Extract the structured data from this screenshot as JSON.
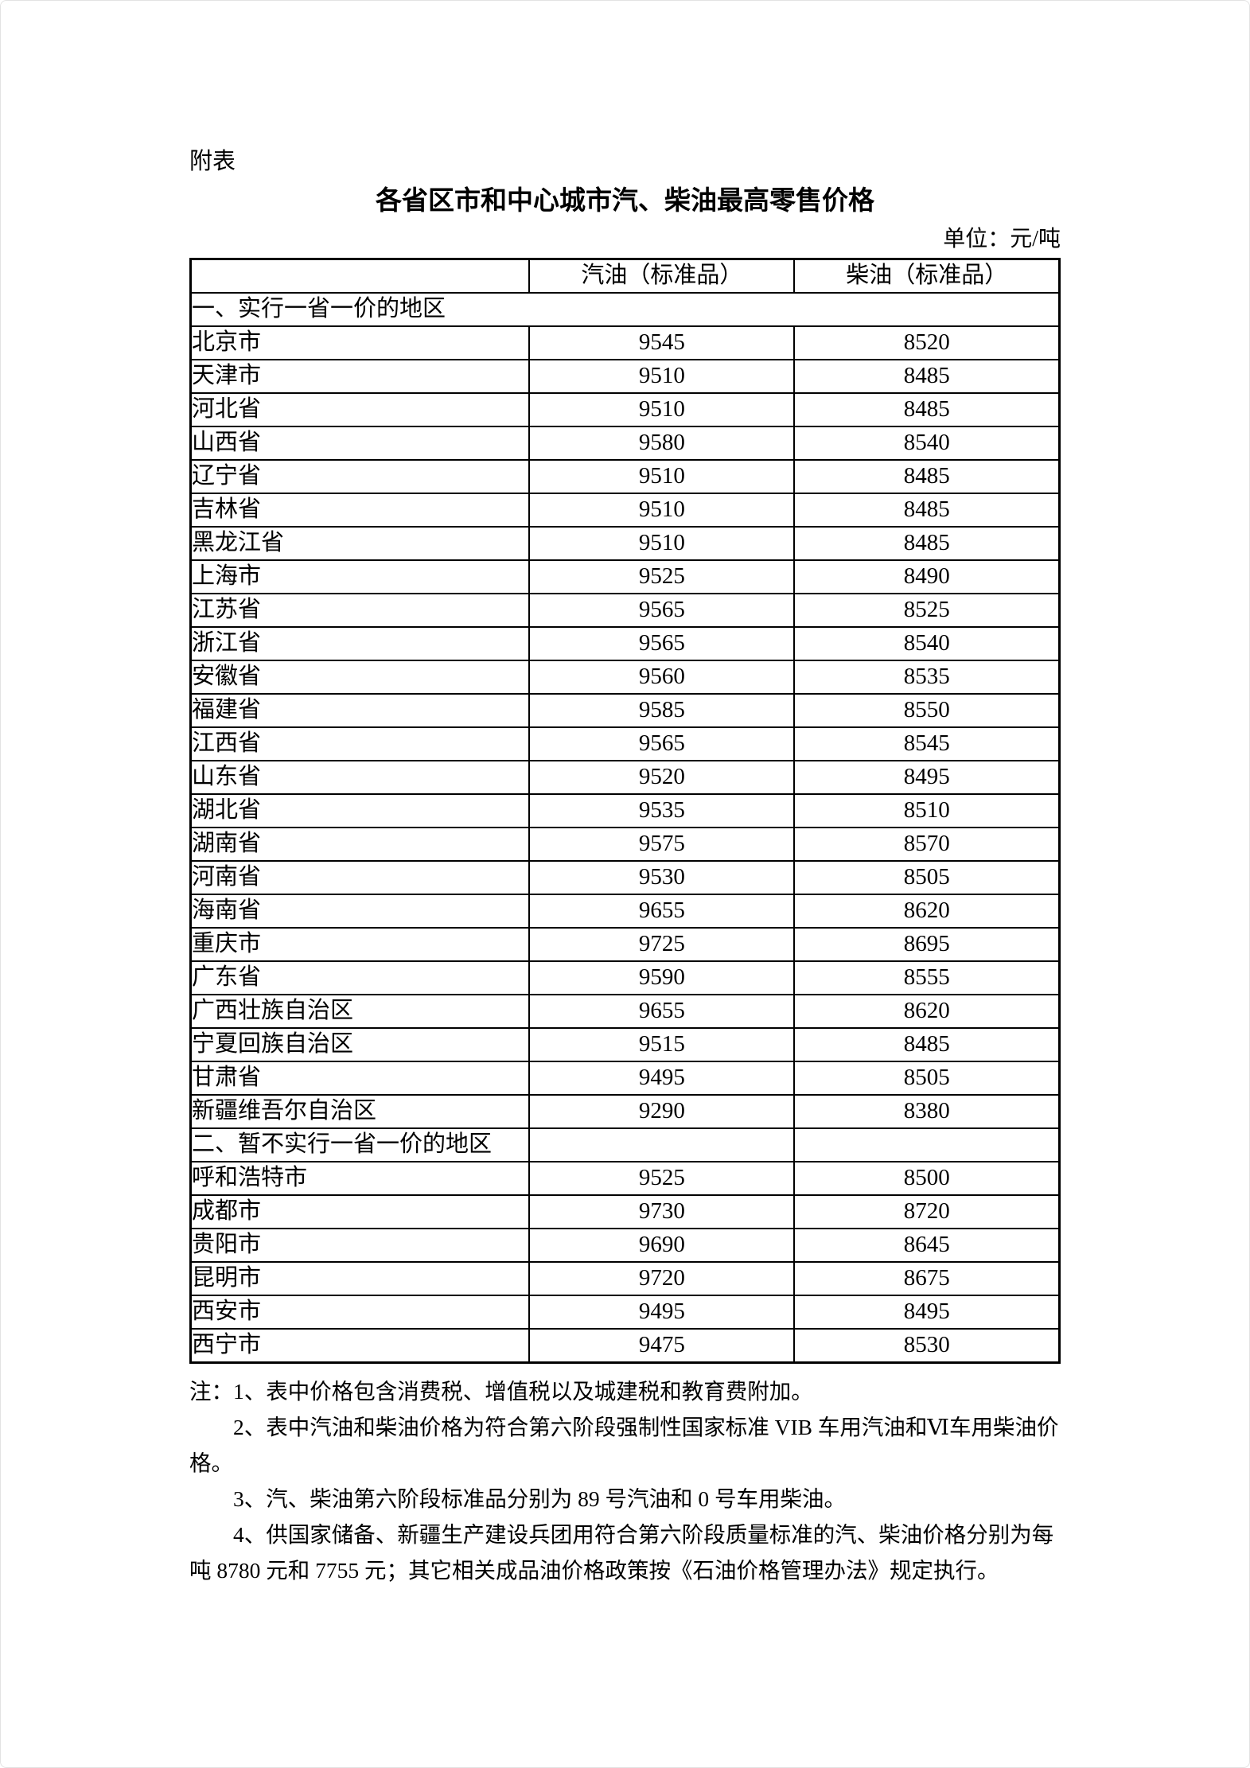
{
  "page": {
    "appendix_label": "附表",
    "title": "各省区市和中心城市汽、柴油最高零售价格",
    "unit_label": "单位：元/吨"
  },
  "table": {
    "columns": [
      "",
      "汽油（标准品）",
      "柴油（标准品）"
    ],
    "sections": [
      {
        "header": "一、实行一省一价的地区",
        "rows": [
          {
            "region": "北京市",
            "gasoline": "9545",
            "diesel": "8520"
          },
          {
            "region": "天津市",
            "gasoline": "9510",
            "diesel": "8485"
          },
          {
            "region": "河北省",
            "gasoline": "9510",
            "diesel": "8485"
          },
          {
            "region": "山西省",
            "gasoline": "9580",
            "diesel": "8540"
          },
          {
            "region": "辽宁省",
            "gasoline": "9510",
            "diesel": "8485"
          },
          {
            "region": "吉林省",
            "gasoline": "9510",
            "diesel": "8485"
          },
          {
            "region": "黑龙江省",
            "gasoline": "9510",
            "diesel": "8485"
          },
          {
            "region": "上海市",
            "gasoline": "9525",
            "diesel": "8490"
          },
          {
            "region": "江苏省",
            "gasoline": "9565",
            "diesel": "8525"
          },
          {
            "region": "浙江省",
            "gasoline": "9565",
            "diesel": "8540"
          },
          {
            "region": "安徽省",
            "gasoline": "9560",
            "diesel": "8535"
          },
          {
            "region": "福建省",
            "gasoline": "9585",
            "diesel": "8550"
          },
          {
            "region": "江西省",
            "gasoline": "9565",
            "diesel": "8545"
          },
          {
            "region": "山东省",
            "gasoline": "9520",
            "diesel": "8495"
          },
          {
            "region": "湖北省",
            "gasoline": "9535",
            "diesel": "8510"
          },
          {
            "region": "湖南省",
            "gasoline": "9575",
            "diesel": "8570"
          },
          {
            "region": "河南省",
            "gasoline": "9530",
            "diesel": "8505"
          },
          {
            "region": "海南省",
            "gasoline": "9655",
            "diesel": "8620"
          },
          {
            "region": "重庆市",
            "gasoline": "9725",
            "diesel": "8695"
          },
          {
            "region": "广东省",
            "gasoline": "9590",
            "diesel": "8555"
          },
          {
            "region": "广西壮族自治区",
            "gasoline": "9655",
            "diesel": "8620"
          },
          {
            "region": "宁夏回族自治区",
            "gasoline": "9515",
            "diesel": "8485"
          },
          {
            "region": "甘肃省",
            "gasoline": "9495",
            "diesel": "8505"
          },
          {
            "region": "新疆维吾尔自治区",
            "gasoline": "9290",
            "diesel": "8380"
          }
        ]
      },
      {
        "header": "二、暂不实行一省一价的地区",
        "rows": [
          {
            "region": "呼和浩特市",
            "gasoline": "9525",
            "diesel": "8500"
          },
          {
            "region": "成都市",
            "gasoline": "9730",
            "diesel": "8720"
          },
          {
            "region": "贵阳市",
            "gasoline": "9690",
            "diesel": "8645"
          },
          {
            "region": "昆明市",
            "gasoline": "9720",
            "diesel": "8675"
          },
          {
            "region": "西安市",
            "gasoline": "9495",
            "diesel": "8495"
          },
          {
            "region": "西宁市",
            "gasoline": "9475",
            "diesel": "8530"
          }
        ]
      }
    ]
  },
  "notes": [
    {
      "lines": [
        "注：1、表中价格包含消费税、增值税以及城建税和教育费附加。"
      ]
    },
    {
      "lines": [
        "2、表中汽油和柴油价格为符合第六阶段强制性国家标准 VIB 车用汽油和Ⅵ车用柴油价",
        "格。"
      ]
    },
    {
      "lines": [
        "3、汽、柴油第六阶段标准品分别为 89 号汽油和 0 号车用柴油。"
      ]
    },
    {
      "lines": [
        "4、供国家储备、新疆生产建设兵团用符合第六阶段质量标准的汽、柴油价格分别为每",
        "吨 8780 元和 7755 元；其它相关成品油价格政策按《石油价格管理办法》规定执行。"
      ]
    }
  ],
  "colors": {
    "text": "#000000",
    "table_border": "#000000",
    "page_edge": "#e3e3e3",
    "background": "#ffffff"
  }
}
